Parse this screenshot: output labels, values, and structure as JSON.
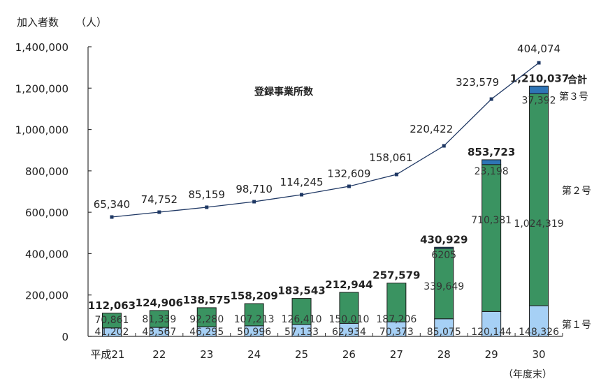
{
  "chart_data": {
    "type": "bar",
    "subtype": "stacked bar with line overlay",
    "ylabel": "加入者数",
    "yunit": "（人）",
    "ylim": [
      0,
      1400000
    ],
    "yticks": [
      "0",
      "200,000",
      "400,000",
      "600,000",
      "800,000",
      "1,000,000",
      "1,200,000",
      "1,400,000"
    ],
    "xlabel": "（年度末）",
    "categories": [
      "平成21",
      "22",
      "23",
      "24",
      "25",
      "26",
      "27",
      "28",
      "29",
      "30"
    ],
    "series": [
      {
        "name": "第１号",
        "color": "#a6d0f5",
        "values": [
          41202,
          43567,
          46295,
          50996,
          57133,
          62934,
          70373,
          85075,
          120144,
          148326
        ],
        "labels": [
          "41,202",
          "43,567",
          "46,295",
          "50,996",
          "57,133",
          "62,934",
          "70,373",
          "85,075",
          "120,144",
          "148,326"
        ]
      },
      {
        "name": "第２号",
        "color": "#3a9361",
        "values": [
          70861,
          81339,
          92280,
          107213,
          126410,
          150010,
          187206,
          339649,
          710381,
          1024319
        ],
        "labels": [
          "70,861",
          "81,339",
          "92,280",
          "107,213",
          "126,410",
          "150,010",
          "187,206",
          "339,649",
          "710,381",
          "1,024,319"
        ]
      },
      {
        "name": "第３号",
        "color": "#2e75b6",
        "values": [
          0,
          0,
          0,
          0,
          0,
          0,
          0,
          6205,
          23198,
          37392
        ],
        "labels": [
          "",
          "",
          "",
          "",
          "",
          "",
          "",
          "6205",
          "23,198",
          "37,392"
        ]
      }
    ],
    "totals": {
      "name": "合計",
      "values": [
        112063,
        124906,
        138575,
        158209,
        183543,
        212944,
        257579,
        430929,
        853723,
        1210037
      ],
      "labels": [
        "112,063",
        "124,906",
        "138,575",
        "158,209",
        "183,543",
        "212,944",
        "257,579",
        "430,929",
        "853,723",
        "1,210,037"
      ]
    },
    "line_series": {
      "name": "登録事業所数",
      "color": "#1f3864",
      "values": [
        65340,
        74752,
        85159,
        98710,
        114245,
        132609,
        158061,
        220422,
        323579,
        404074
      ],
      "labels": [
        "65,340",
        "74,752",
        "85,159",
        "98,710",
        "114,245",
        "132,609",
        "158,061",
        "220,422",
        "323,579",
        "404,074"
      ]
    },
    "legend": {
      "position": "right",
      "entries": [
        "合計",
        "第３号",
        "第２号",
        "第１号"
      ]
    },
    "grid": false
  },
  "text": {
    "ylabel": "加入者数",
    "yunit": "（人）",
    "line_label": "登録事業所数",
    "xunit": "（年度末）",
    "legend_total": "合計",
    "legend_s3": "第３号",
    "legend_s2": "第２号",
    "legend_s1": "第１号"
  }
}
